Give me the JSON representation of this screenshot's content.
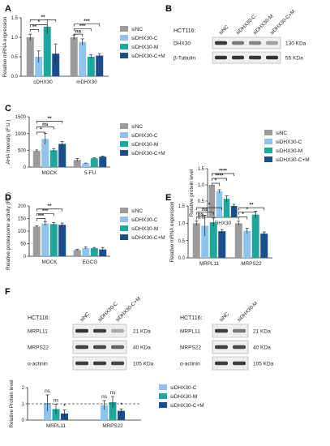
{
  "colors": {
    "siNC": "#9b9b9b",
    "siDHX30_C": "#8fc3ec",
    "siDHX30_M": "#1ea79c",
    "siDHX30_CM": "#1a4f8c",
    "text": "#222222",
    "blot_band": "#2a2a2a",
    "blot_bg": "#efefef"
  },
  "legend": {
    "four": [
      "siNC",
      "siDHX30-C",
      "siDHX30-M",
      "siDHX30-C+M"
    ],
    "three": [
      "siDHX30-C",
      "siDHX30-M",
      "siDHX30-C+M"
    ]
  },
  "panels": {
    "A": {
      "letter": "A"
    },
    "B": {
      "letter": "B",
      "cell_line": "HCT116:",
      "lanes": [
        "siNC",
        "siDHX30-C",
        "siDHX30-M",
        "siDHX30-C+M"
      ],
      "rows": [
        "DHX30",
        "β-Tubulin"
      ],
      "sizes": [
        "130 KDa",
        "55 KDa"
      ]
    },
    "C": {
      "letter": "C"
    },
    "D": {
      "letter": "D"
    },
    "E": {
      "letter": "E"
    },
    "F": {
      "letter": "F",
      "blot1": {
        "cell_line": "HCT116:",
        "lanes": [
          "siNC",
          "siDHX30-C",
          "siDHX30-C+M"
        ],
        "rows": [
          "MRPL11",
          "MRPS22",
          "α-actinin"
        ],
        "sizes": [
          "21 KDa",
          "40 KDa",
          "105 KDa"
        ]
      },
      "blot2": {
        "cell_line": "HCT116:",
        "lanes": [
          "siNC",
          "siDHX30-M"
        ],
        "rows": [
          "MRPL11",
          "MRPS22",
          "α-actinin"
        ],
        "sizes": [
          "21 KDa",
          "40 KDa",
          "105 KDa"
        ]
      }
    }
  },
  "chart_data": [
    {
      "id": "A",
      "type": "bar",
      "categories": [
        "cDHX30",
        "mDHX30"
      ],
      "series": [
        {
          "name": "siNC",
          "values": [
            1.0,
            1.0
          ],
          "err": [
            0.08,
            0.06
          ]
        },
        {
          "name": "siDHX30-C",
          "values": [
            0.5,
            0.88
          ],
          "err": [
            0.15,
            0.08
          ]
        },
        {
          "name": "siDHX30-M",
          "values": [
            1.27,
            0.5
          ],
          "err": [
            0.18,
            0.05
          ]
        },
        {
          "name": "siDHX30-C+M",
          "values": [
            0.58,
            0.53
          ],
          "err": [
            0.25,
            0.05
          ]
        }
      ],
      "ylabel": "Relative mRNA expression",
      "ylim": [
        0,
        1.5
      ],
      "yticks": [
        0.0,
        0.5,
        1.0,
        1.5
      ],
      "significance": [
        {
          "group": 0,
          "from": 0,
          "to": 1,
          "label": "**",
          "level": 1.2
        },
        {
          "group": 0,
          "from": 0,
          "to": 2,
          "label": "*",
          "level": 1.32
        },
        {
          "group": 0,
          "from": 0,
          "to": 3,
          "label": "**",
          "level": 1.45
        },
        {
          "group": 1,
          "from": 0,
          "to": 1,
          "label": "ns",
          "level": 1.08
        },
        {
          "group": 1,
          "from": 0,
          "to": 2,
          "label": "***",
          "level": 1.22
        },
        {
          "group": 1,
          "from": 0,
          "to": 3,
          "label": "***",
          "level": 1.34
        }
      ]
    },
    {
      "id": "B",
      "type": "bar",
      "categories": [
        "DHX30"
      ],
      "series": [
        {
          "name": "siNC",
          "values": [
            1.0
          ],
          "err": [
            0.0
          ]
        },
        {
          "name": "siDHX30-C",
          "values": [
            0.8
          ],
          "err": [
            0.05
          ]
        },
        {
          "name": "siDHX30-M",
          "values": [
            0.57
          ],
          "err": [
            0.09
          ]
        },
        {
          "name": "siDHX30-C+M",
          "values": [
            0.35
          ],
          "err": [
            0.05
          ]
        }
      ],
      "ylabel": "Relative protein level",
      "ylim": [
        0,
        1.5
      ],
      "yticks": [
        0.0,
        0.5,
        1.0,
        1.5
      ],
      "significance": [
        {
          "group": 0,
          "from": 0,
          "to": 1,
          "label": "*",
          "level": 1.05
        },
        {
          "group": 0,
          "from": 0,
          "to": 2,
          "label": "****",
          "level": 1.2
        },
        {
          "group": 0,
          "from": 0,
          "to": 3,
          "label": "****",
          "level": 1.35
        }
      ]
    },
    {
      "id": "C",
      "type": "bar",
      "categories": [
        "MOCK",
        "5-FU"
      ],
      "series": [
        {
          "name": "siNC",
          "values": [
            480,
            210
          ],
          "err": [
            30,
            40
          ]
        },
        {
          "name": "siDHX30-C",
          "values": [
            840,
            110
          ],
          "err": [
            160,
            10
          ]
        },
        {
          "name": "siDHX30-M",
          "values": [
            500,
            260
          ],
          "err": [
            50,
            15
          ]
        },
        {
          "name": "siDHX30-C+M",
          "values": [
            690,
            310
          ],
          "err": [
            70,
            15
          ]
        }
      ],
      "ylabel": "AHA Intensity (F.U.)",
      "ylim": [
        0,
        1500
      ],
      "yticks": [
        0,
        500,
        1000,
        1500
      ],
      "significance": [
        {
          "group": 0,
          "from": 0,
          "to": 1,
          "label": "*",
          "level": 1040
        },
        {
          "group": 0,
          "from": 0,
          "to": 2,
          "label": "ns",
          "level": 1200
        },
        {
          "group": 0,
          "from": 0,
          "to": 3,
          "label": "**",
          "level": 1370
        }
      ]
    },
    {
      "id": "D",
      "type": "bar",
      "categories": [
        "MOCK",
        "EGCG"
      ],
      "series": [
        {
          "name": "siNC",
          "values": [
            118,
            25
          ],
          "err": [
            3,
            2
          ]
        },
        {
          "name": "siDHX30-C",
          "values": [
            130,
            33
          ],
          "err": [
            8,
            4
          ]
        },
        {
          "name": "siDHX30-M",
          "values": [
            128,
            32
          ],
          "err": [
            6,
            3
          ]
        },
        {
          "name": "siDHX30-C+M",
          "values": [
            125,
            27
          ],
          "err": [
            7,
            8
          ]
        }
      ],
      "ylabel": "Relative proteasome activity (F.U.)",
      "ylim": [
        0,
        200
      ],
      "yticks": [
        0,
        50,
        100,
        150,
        200
      ],
      "significance": [
        {
          "group": 0,
          "from": 0,
          "to": 1,
          "label": "***",
          "level": 150
        },
        {
          "group": 0,
          "from": 0,
          "to": 2,
          "label": "***",
          "level": 170
        },
        {
          "group": 0,
          "from": 0,
          "to": 3,
          "label": "**",
          "level": 188
        }
      ]
    },
    {
      "id": "E",
      "type": "bar",
      "categories": [
        "MRPL11",
        "MRPS22"
      ],
      "series": [
        {
          "name": "siNC",
          "values": [
            1.0,
            1.0
          ],
          "err": [
            0.07,
            0.06
          ]
        },
        {
          "name": "siDHX30-C",
          "values": [
            0.93,
            0.78
          ],
          "err": [
            0.3,
            0.08
          ]
        },
        {
          "name": "siDHX30-M",
          "values": [
            1.03,
            1.25
          ],
          "err": [
            0.12,
            0.1
          ]
        },
        {
          "name": "siDHX30-C+M",
          "values": [
            0.77,
            0.7
          ],
          "err": [
            0.05,
            0.05
          ]
        }
      ],
      "ylabel": "Relative mRNA expression",
      "ylim": [
        0,
        1.5
      ],
      "yticks": [
        0.0,
        0.5,
        1.0,
        1.5
      ],
      "significance": [
        {
          "group": 0,
          "from": 0,
          "to": 1,
          "label": "ns",
          "level": 1.18
        },
        {
          "group": 0,
          "from": 0,
          "to": 2,
          "label": "ns",
          "level": 1.32
        },
        {
          "group": 0,
          "from": 0,
          "to": 3,
          "label": "*",
          "level": 1.45
        },
        {
          "group": 1,
          "from": 0,
          "to": 1,
          "label": "*",
          "level": 1.18
        },
        {
          "group": 1,
          "from": 0,
          "to": 2,
          "label": "*",
          "level": 1.32
        },
        {
          "group": 1,
          "from": 0,
          "to": 3,
          "label": "**",
          "level": 1.45
        }
      ]
    },
    {
      "id": "F",
      "type": "bar",
      "categories": [
        "MRPL11",
        "MRPS22"
      ],
      "series": [
        {
          "name": "siDHX30-C",
          "values": [
            1.05,
            0.92
          ],
          "err": [
            0.5,
            0.28
          ]
        },
        {
          "name": "siDHX30-M",
          "values": [
            0.68,
            1.1
          ],
          "err": [
            0.3,
            0.35
          ]
        },
        {
          "name": "siDHX30-C+M",
          "values": [
            0.4,
            0.57
          ],
          "err": [
            0.22,
            0.12
          ]
        }
      ],
      "ylabel": "Relative Protein level",
      "ylim": [
        0,
        2
      ],
      "yticks": [
        0,
        1,
        2
      ],
      "reference_line": 1,
      "annotations": [
        {
          "group": 0,
          "bar": 0,
          "label": "ns"
        },
        {
          "group": 0,
          "bar": 1,
          "label": "ns"
        },
        {
          "group": 0,
          "bar": 2,
          "label": "*"
        },
        {
          "group": 1,
          "bar": 0,
          "label": "ns"
        },
        {
          "group": 1,
          "bar": 1,
          "label": "ns"
        },
        {
          "group": 1,
          "bar": 2,
          "label": "*"
        }
      ]
    }
  ]
}
